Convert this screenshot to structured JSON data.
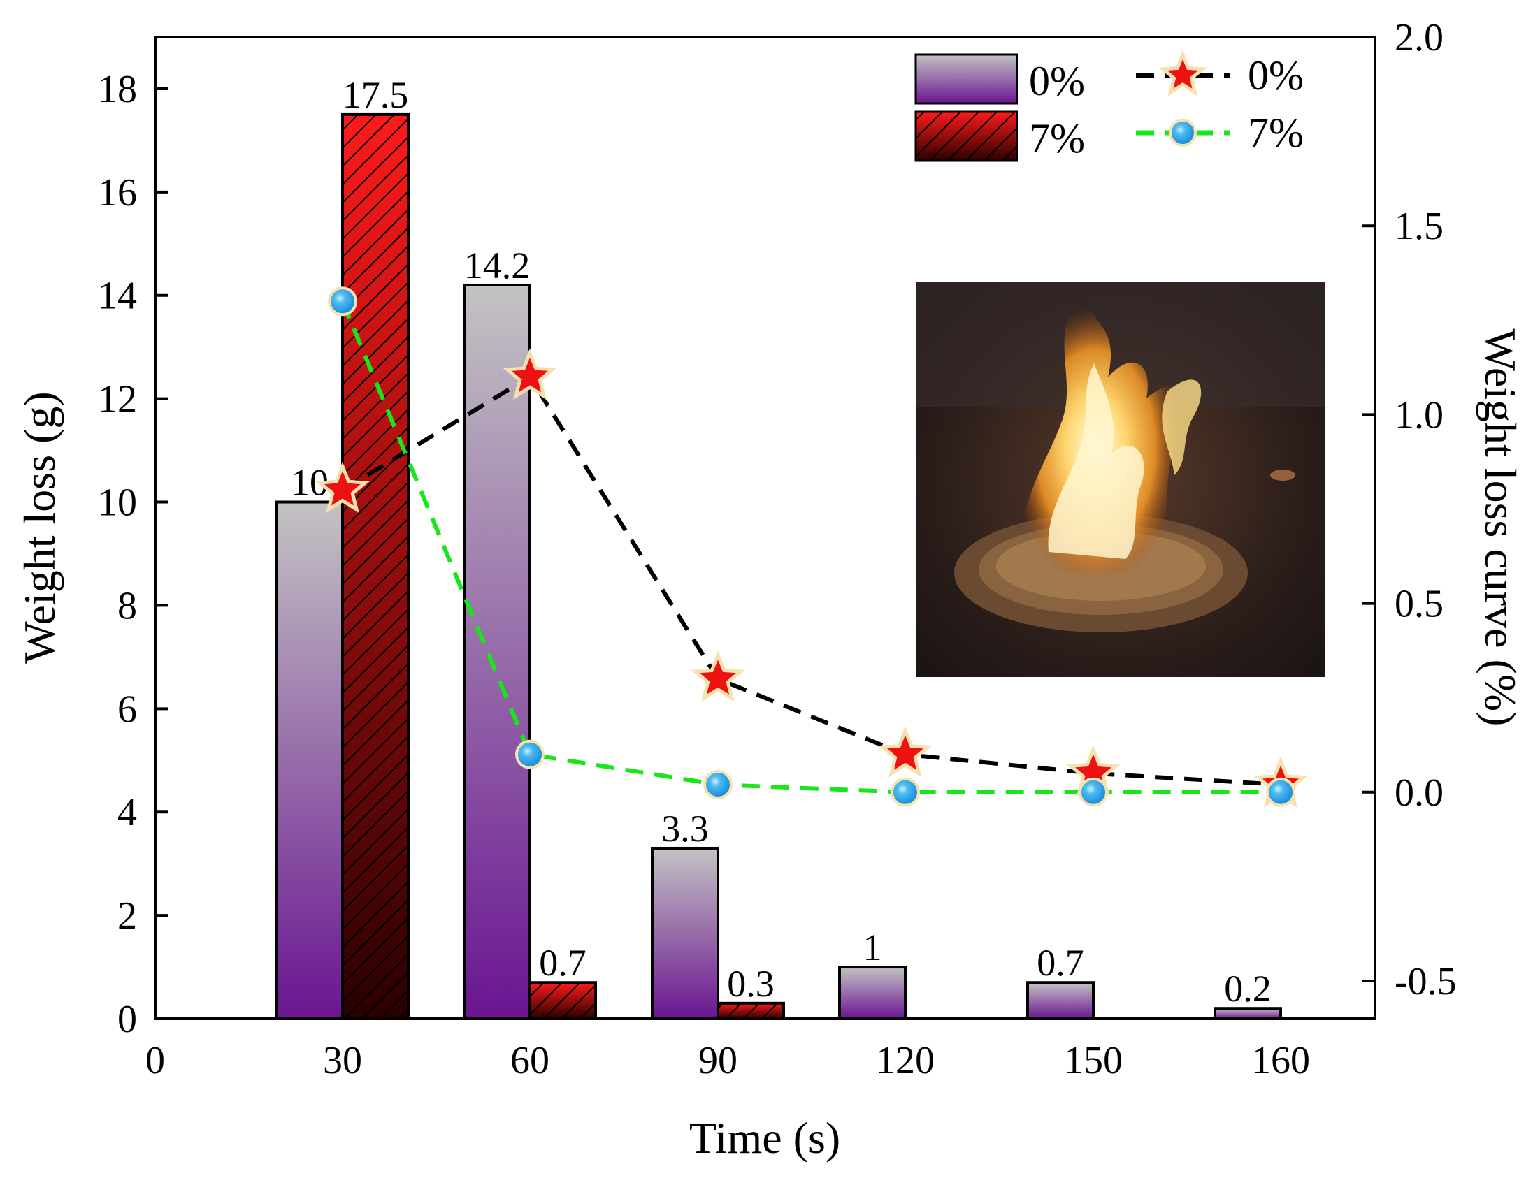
{
  "chart_data": {
    "type": "bar",
    "categories": [
      "30",
      "60",
      "90",
      "120",
      "150",
      "160"
    ],
    "x_axis": {
      "label": "Time (s)",
      "origin_label": "0",
      "tick_labels": [
        "0",
        "30",
        "60",
        "90",
        "120",
        "150",
        "160"
      ]
    },
    "y_left": {
      "label": "Weight loss (g)",
      "range": [
        0,
        19
      ],
      "ticks": [
        0,
        2,
        4,
        6,
        8,
        10,
        12,
        14,
        16,
        18
      ]
    },
    "y_right": {
      "label": "Weight loss curve (%)",
      "range": [
        -0.6,
        2.0
      ],
      "ticks": [
        -0.5,
        0.0,
        0.5,
        1.0,
        1.5,
        2.0
      ],
      "tick_labels": [
        "-0.5",
        "0.0",
        "0.5",
        "1.0",
        "1.5",
        "2.0"
      ]
    },
    "bar_series": [
      {
        "name": "0%",
        "values": [
          10,
          14.2,
          3.3,
          1,
          0.7,
          0.2
        ],
        "labels": [
          "10",
          "14.2",
          "3.3",
          "1",
          "0.7",
          "0.2"
        ],
        "style": "gradient",
        "color_top": "#c3c3c3",
        "color_bottom": "#6a1591"
      },
      {
        "name": "7%",
        "values": [
          17.5,
          0.7,
          0.3,
          null,
          null,
          null
        ],
        "labels": [
          "17.5",
          "0.7",
          "0.3",
          null,
          null,
          null
        ],
        "style": "hatched-gradient",
        "color_top": "#ff1a1a",
        "color_bottom": "#2a0000"
      }
    ],
    "line_series": [
      {
        "name": "0%",
        "values": [
          0.8,
          1.1,
          0.3,
          0.1,
          0.05,
          0.02
        ],
        "marker": "star",
        "line_color": "#000000",
        "marker_color": "#ee1111"
      },
      {
        "name": "7%",
        "values": [
          1.3,
          0.1,
          0.02,
          0.0,
          0.0,
          0.0
        ],
        "marker": "circle",
        "line_color": "#19e619",
        "marker_color": "#1fa3e8"
      }
    ],
    "legend_position": "top-right",
    "inset": "photo of a flame burning over a dish of granular material"
  }
}
